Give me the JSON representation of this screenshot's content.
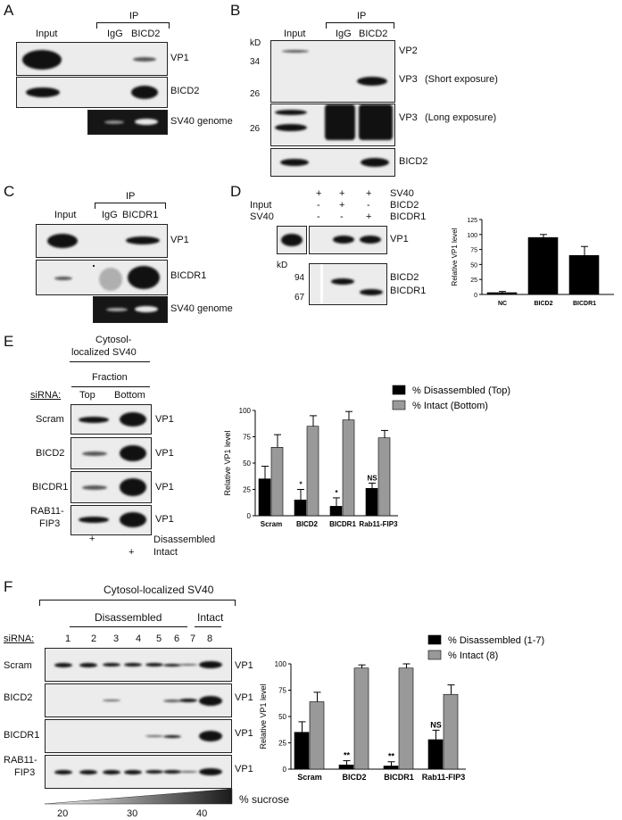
{
  "panels": {
    "A": {
      "label": "A",
      "ip": "IP",
      "lanes": [
        "Input",
        "IgG",
        "BICD2"
      ],
      "rows": [
        "VP1",
        "BICD2",
        "SV40 genome"
      ]
    },
    "B": {
      "label": "B",
      "ip": "IP",
      "kd": "kD",
      "lanes": [
        "Input",
        "IgG",
        "BICD2"
      ],
      "markers": [
        "34",
        "26",
        "26"
      ],
      "rows": [
        "VP2",
        "VP3",
        "(Short exposure)",
        "VP3",
        "(Long exposure)",
        "BICD2"
      ]
    },
    "C": {
      "label": "C",
      "ip": "IP",
      "lanes": [
        "Input",
        "IgG",
        "BICDR1"
      ],
      "rows": [
        "VP1",
        "BICDR1",
        "SV40 genome"
      ]
    },
    "D": {
      "label": "D",
      "conditions": [
        "SV40",
        "BICD2",
        "BICDR1"
      ],
      "input_labels": [
        "Input",
        "SV40"
      ],
      "signs": [
        [
          "+",
          "+",
          "+"
        ],
        [
          "-",
          "+",
          "-"
        ],
        [
          "-",
          "-",
          "+"
        ]
      ],
      "input_signs": [
        "-",
        "-"
      ],
      "kd": "kD",
      "markers": [
        "94",
        "67"
      ],
      "rows": [
        "VP1",
        "BICD2",
        "BICDR1"
      ]
    },
    "E": {
      "label": "E",
      "header": [
        "Cytosol-",
        "localized SV40"
      ],
      "fraction": "Fraction",
      "sirna": "siRNA:",
      "cols": [
        "Top",
        "Bottom"
      ],
      "rows": [
        "Scram",
        "BICD2",
        "BICDR1",
        "RAB11-",
        "FIP3"
      ],
      "row_label": "VP1",
      "footer": [
        [
          "+",
          "Disassembled"
        ],
        [
          "+",
          "Intact"
        ]
      ]
    },
    "F": {
      "label": "F",
      "header": "Cytosol-localized SV40",
      "disassembled": "Disassembled",
      "intact": "Intact",
      "sirna": "siRNA:",
      "lanes": [
        "1",
        "2",
        "3",
        "4",
        "5",
        "6",
        "7",
        "8"
      ],
      "rows": [
        "Scram",
        "BICD2",
        "BICDR1",
        "RAB11-",
        "FIP3"
      ],
      "row_label": "VP1",
      "sucrose_ticks": [
        "20",
        "30",
        "40"
      ],
      "sucrose_label": "% sucrose"
    }
  },
  "chart_data": [
    {
      "type": "bar",
      "id": "D",
      "categories": [
        "NC",
        "BICD2",
        "BICDR1"
      ],
      "series": [
        {
          "values": [
            3,
            95,
            65
          ],
          "errors": [
            2,
            5,
            15
          ],
          "color": "#000000"
        }
      ],
      "ylabel": "Relative VP1 level",
      "ylim": [
        0,
        125
      ],
      "yticks": [
        "0",
        "25",
        "50",
        "75",
        "100",
        "125"
      ]
    },
    {
      "type": "bar",
      "id": "E",
      "categories": [
        "Scram",
        "BICD2",
        "BICDR1",
        "Rab11-FIP3"
      ],
      "series": [
        {
          "name": "% Disassembled (Top)",
          "values": [
            35,
            15,
            9,
            26
          ],
          "errors": [
            12,
            10,
            8,
            5
          ],
          "color": "#000000"
        },
        {
          "name": "% Intact (Bottom)",
          "values": [
            65,
            85,
            91,
            74
          ],
          "errors": [
            12,
            10,
            8,
            7
          ],
          "color": "#999999"
        }
      ],
      "annotations": [
        "",
        "*",
        "*",
        "NS"
      ],
      "ylabel": "Relative VP1 level",
      "ylim": [
        0,
        100
      ],
      "yticks": [
        "0",
        "25",
        "50",
        "75",
        "100"
      ],
      "legend": "top-right"
    },
    {
      "type": "bar",
      "id": "F",
      "categories": [
        "Scram",
        "BICD2",
        "BICDR1",
        "Rab11-FIP3"
      ],
      "series": [
        {
          "name": "% Disassembled (1-7)",
          "values": [
            35,
            4,
            3,
            28
          ],
          "errors": [
            10,
            4,
            4,
            9
          ],
          "color": "#000000"
        },
        {
          "name": "% Intact (8)",
          "values": [
            64,
            96,
            96,
            71
          ],
          "errors": [
            9,
            3,
            4,
            9
          ],
          "color": "#999999"
        }
      ],
      "annotations": [
        "",
        "**",
        "**",
        "NS"
      ],
      "ylabel": "Relative VP1 level",
      "ylim": [
        0,
        100
      ],
      "yticks": [
        "0",
        "25",
        "50",
        "75",
        "100"
      ],
      "legend": "top-right"
    }
  ]
}
